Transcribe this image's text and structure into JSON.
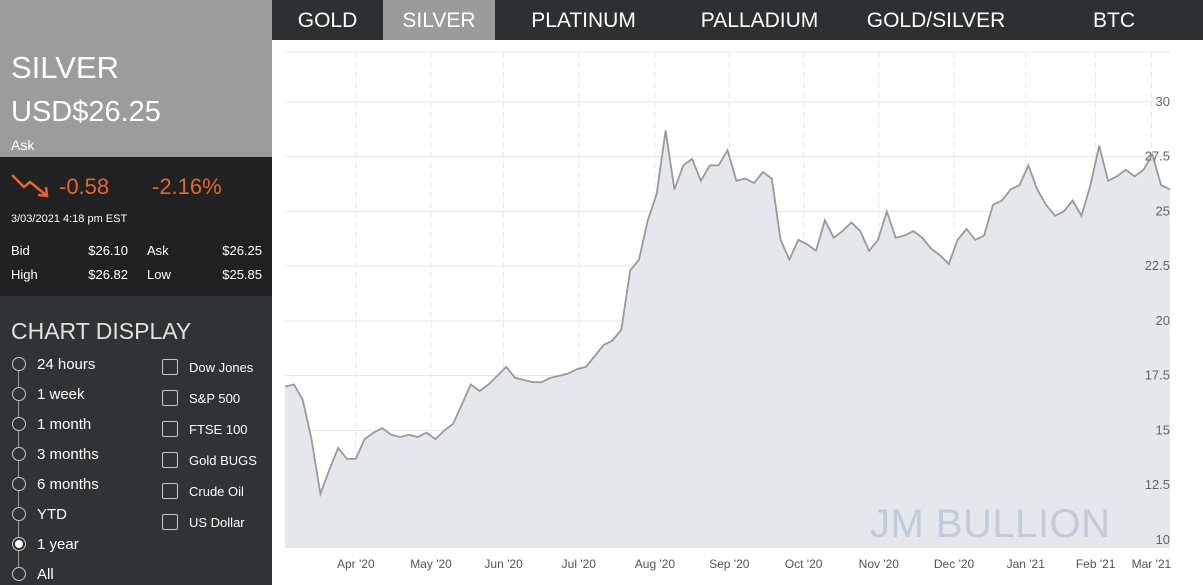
{
  "tabs": [
    "GOLD",
    "SILVER",
    "PLATINUM",
    "PALLADIUM",
    "GOLD/SILVER",
    "BTC"
  ],
  "active_tab": 1,
  "quote": {
    "metal": "SILVER",
    "price": "USD$26.25",
    "price_type": "Ask",
    "change": "-0.58",
    "change_pct": "-2.16%",
    "timestamp": "3/03/2021 4:18 pm EST",
    "stats": [
      [
        "Bid",
        "$26.10",
        "Ask",
        "$26.25"
      ],
      [
        "High",
        "$26.82",
        "Low",
        "$25.85"
      ]
    ]
  },
  "chart_display": {
    "title": "CHART DISPLAY",
    "ranges": [
      "24 hours",
      "1 week",
      "1 month",
      "3 months",
      "6 months",
      "YTD",
      "1 year",
      "All"
    ],
    "selected_range": 6,
    "compare": [
      "Dow Jones",
      "S&P 500",
      "FTSE 100",
      "Gold BUGS",
      "Crude Oil",
      "US Dollar"
    ]
  },
  "chart_data": {
    "type": "area",
    "watermark": "JM BULLION",
    "series": [
      {
        "color": "#9a9a9a",
        "fill": "#e4e7eb",
        "values": [
          17.0,
          17.1,
          16.4,
          14.6,
          12.1,
          13.2,
          14.2,
          13.7,
          13.7,
          14.6,
          14.9,
          15.1,
          14.8,
          14.7,
          14.8,
          14.7,
          14.9,
          14.6,
          15.0,
          15.3,
          16.2,
          17.1,
          16.8,
          17.1,
          17.5,
          17.9,
          17.4,
          17.3,
          17.2,
          17.2,
          17.4,
          17.5,
          17.6,
          17.8,
          17.9,
          18.4,
          18.9,
          19.1,
          19.6,
          22.3,
          22.8,
          24.6,
          25.8,
          28.7,
          26.0,
          27.1,
          27.4,
          26.4,
          27.1,
          27.1,
          27.8,
          26.4,
          26.5,
          26.3,
          26.8,
          26.5,
          23.7,
          22.8,
          23.7,
          23.5,
          23.2,
          24.6,
          23.8,
          24.1,
          24.5,
          24.1,
          23.2,
          23.7,
          25.0,
          23.8,
          23.9,
          24.1,
          23.8,
          23.3,
          23.0,
          22.6,
          23.7,
          24.2,
          23.7,
          23.9,
          25.3,
          25.5,
          26.0,
          26.2,
          27.1,
          26.0,
          25.3,
          24.8,
          25.0,
          25.5,
          24.8,
          26.2,
          28.0,
          26.4,
          26.6,
          26.9,
          26.6,
          26.9,
          27.6,
          26.2,
          26.0
        ]
      }
    ],
    "xlim": [
      0,
      100
    ],
    "xticks": [
      {
        "value": 8.0,
        "label": "Apr '20"
      },
      {
        "value": 16.5,
        "label": "May '20"
      },
      {
        "value": 24.7,
        "label": "Jun '20"
      },
      {
        "value": 33.2,
        "label": "Jul '20"
      },
      {
        "value": 41.8,
        "label": "Aug '20"
      },
      {
        "value": 50.2,
        "label": "Sep '20"
      },
      {
        "value": 58.6,
        "label": "Oct '20"
      },
      {
        "value": 67.1,
        "label": "Nov '20"
      },
      {
        "value": 75.6,
        "label": "Dec '20"
      },
      {
        "value": 83.7,
        "label": "Jan '21"
      },
      {
        "value": 91.6,
        "label": "Feb '21"
      },
      {
        "value": 97.9,
        "label": "Mar '21"
      }
    ],
    "ylim": [
      9.63,
      32.28
    ],
    "yticks": [
      10,
      12.5,
      15,
      17.5,
      20,
      22.5,
      25,
      27.5,
      30
    ],
    "grid": true
  }
}
